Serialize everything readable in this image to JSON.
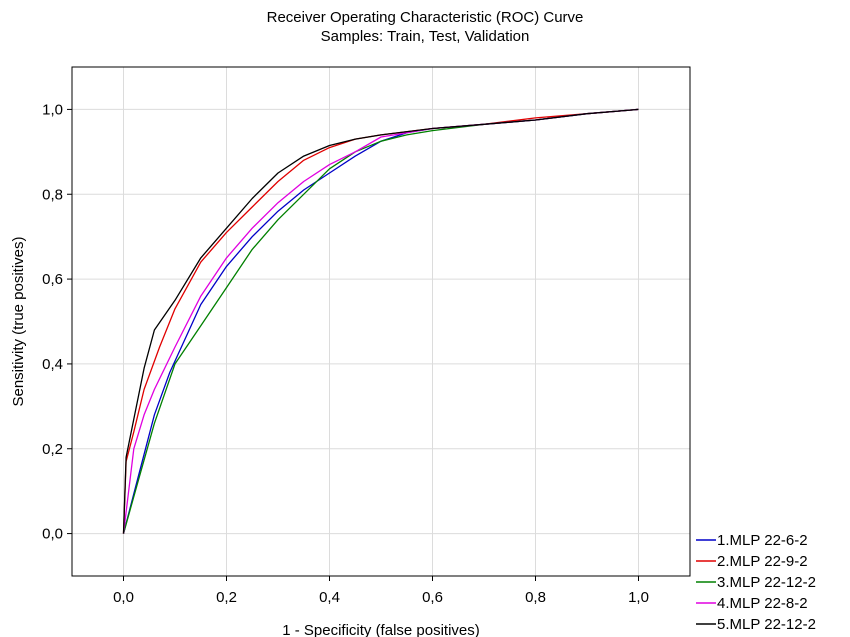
{
  "chart_data": {
    "type": "line",
    "title": "Receiver Operating Characteristic (ROC) Curve",
    "subtitle": "Samples: Train, Test, Validation",
    "xlabel": "1 - Specificity (false positives)",
    "ylabel": "Sensitivity (true positives)",
    "xlim": [
      -0.1,
      1.1
    ],
    "ylim": [
      -0.1,
      1.1
    ],
    "xticks": [
      0.0,
      0.2,
      0.4,
      0.6,
      0.8,
      1.0
    ],
    "yticks": [
      0.0,
      0.2,
      0.4,
      0.6,
      0.8,
      1.0
    ],
    "xtick_labels": [
      "0,0",
      "0,2",
      "0,4",
      "0,6",
      "0,8",
      "1,0"
    ],
    "ytick_labels": [
      "0,0",
      "0,2",
      "0,4",
      "0,6",
      "0,8",
      "1,0"
    ],
    "grid": true,
    "legend_position": "bottom-right outside",
    "series": [
      {
        "name": "1.MLP 22-6-2",
        "color": "#0000c8",
        "x": [
          0.0,
          0.03,
          0.06,
          0.09,
          0.12,
          0.15,
          0.2,
          0.25,
          0.3,
          0.35,
          0.4,
          0.45,
          0.5,
          0.55,
          0.6,
          0.7,
          0.8,
          0.9,
          1.0
        ],
        "y": [
          0.0,
          0.14,
          0.28,
          0.38,
          0.46,
          0.54,
          0.63,
          0.7,
          0.76,
          0.81,
          0.85,
          0.89,
          0.925,
          0.945,
          0.955,
          0.965,
          0.975,
          0.99,
          1.0
        ]
      },
      {
        "name": "2.MLP 22-9-2",
        "color": "#e00000",
        "x": [
          0.0,
          0.005,
          0.02,
          0.04,
          0.07,
          0.1,
          0.15,
          0.2,
          0.25,
          0.3,
          0.35,
          0.4,
          0.45,
          0.5,
          0.6,
          0.7,
          0.8,
          0.9,
          1.0
        ],
        "y": [
          0.0,
          0.17,
          0.24,
          0.34,
          0.44,
          0.53,
          0.64,
          0.71,
          0.77,
          0.83,
          0.88,
          0.91,
          0.93,
          0.94,
          0.955,
          0.965,
          0.98,
          0.99,
          1.0
        ]
      },
      {
        "name": "3.MLP 22-12-2",
        "color": "#008000",
        "x": [
          0.0,
          0.03,
          0.06,
          0.1,
          0.15,
          0.2,
          0.25,
          0.3,
          0.35,
          0.4,
          0.45,
          0.5,
          0.55,
          0.6,
          0.7,
          0.8,
          0.9,
          1.0
        ],
        "y": [
          0.0,
          0.13,
          0.26,
          0.4,
          0.49,
          0.58,
          0.67,
          0.74,
          0.8,
          0.86,
          0.9,
          0.925,
          0.94,
          0.95,
          0.965,
          0.975,
          0.99,
          1.0
        ]
      },
      {
        "name": "4.MLP 22-8-2",
        "color": "#e000e0",
        "x": [
          0.0,
          0.02,
          0.04,
          0.06,
          0.1,
          0.15,
          0.2,
          0.25,
          0.3,
          0.35,
          0.4,
          0.45,
          0.5,
          0.6,
          0.7,
          0.8,
          0.9,
          1.0
        ],
        "y": [
          0.0,
          0.2,
          0.28,
          0.34,
          0.44,
          0.56,
          0.65,
          0.72,
          0.78,
          0.83,
          0.87,
          0.9,
          0.935,
          0.955,
          0.965,
          0.975,
          0.99,
          1.0
        ]
      },
      {
        "name": "5.MLP 22-12-2",
        "color": "#000000",
        "x": [
          0.0,
          0.005,
          0.02,
          0.04,
          0.06,
          0.1,
          0.15,
          0.2,
          0.25,
          0.3,
          0.35,
          0.4,
          0.45,
          0.5,
          0.6,
          0.7,
          0.8,
          0.9,
          1.0
        ],
        "y": [
          0.0,
          0.18,
          0.27,
          0.39,
          0.48,
          0.55,
          0.65,
          0.72,
          0.79,
          0.85,
          0.89,
          0.915,
          0.93,
          0.94,
          0.955,
          0.965,
          0.975,
          0.99,
          1.0
        ]
      }
    ]
  }
}
